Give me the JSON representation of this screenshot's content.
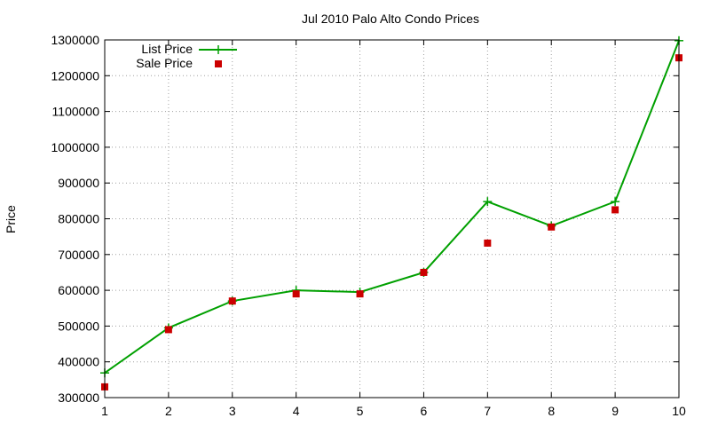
{
  "chart_data": {
    "type": "line",
    "title": "Jul 2010 Palo Alto Condo Prices",
    "xlabel": "",
    "ylabel": "Price",
    "xlim": [
      1,
      10
    ],
    "ylim": [
      300000,
      1300000
    ],
    "x_ticks": [
      "1",
      "2",
      "3",
      "4",
      "5",
      "6",
      "7",
      "8",
      "9",
      "10"
    ],
    "y_ticks": [
      "300000",
      "400000",
      "500000",
      "600000",
      "700000",
      "800000",
      "900000",
      "1000000",
      "1100000",
      "1200000",
      "1300000"
    ],
    "grid": true,
    "legend_position": "top-left",
    "series": [
      {
        "name": "List Price",
        "style": "line-with-plus-markers",
        "color": "#00a000",
        "x": [
          1,
          2,
          3,
          4,
          5,
          6,
          7,
          8,
          9,
          10
        ],
        "y": [
          369000,
          495000,
          570000,
          600000,
          595000,
          650000,
          848000,
          780000,
          848000,
          1298000
        ]
      },
      {
        "name": "Sale Price",
        "style": "square-markers",
        "color": "#cc0000",
        "x": [
          1,
          2,
          3,
          4,
          5,
          6,
          7,
          8,
          9,
          10
        ],
        "y": [
          330000,
          490000,
          570000,
          590000,
          590000,
          650000,
          732000,
          777000,
          825000,
          1250000
        ]
      }
    ]
  }
}
